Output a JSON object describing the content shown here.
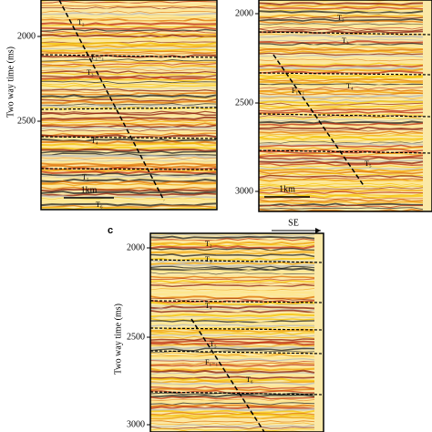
{
  "panels": [
    {
      "yticks": [
        "2000",
        "2500"
      ],
      "ylabel": "Two way time (ms)",
      "horizons": [
        "T₂",
        "T₃",
        "T₄",
        "T₅",
        "T₆"
      ],
      "fault": "F₁₋₁",
      "scale": "1km"
    },
    {
      "yticks": [
        "2000",
        "2500",
        "3000"
      ],
      "horizons": [
        "T₂",
        "T₃",
        "T₄",
        "T₅"
      ],
      "fault": "F₁₋₁",
      "scale": "1km"
    },
    {
      "label": "c",
      "direction": "SE",
      "yticks": [
        "2000",
        "2500",
        "3000"
      ],
      "ylabel": "Two way time (ms)",
      "horizons": [
        "T₂",
        "T₃",
        "T₄",
        "T₅",
        "T₆"
      ],
      "fault": "F₁₋₁"
    }
  ]
}
